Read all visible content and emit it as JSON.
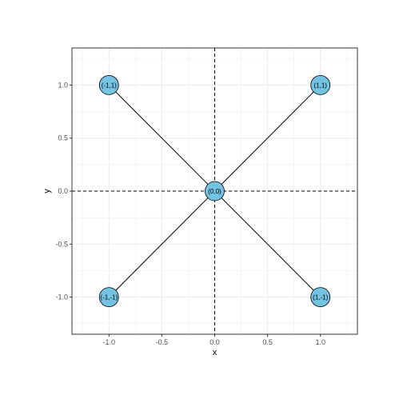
{
  "chart_data": {
    "type": "scatter",
    "xlabel": "x",
    "ylabel": "y",
    "xlim": [
      -1.35,
      1.35
    ],
    "ylim": [
      -1.35,
      1.35
    ],
    "x_ticks": [
      -1.0,
      -0.5,
      0.0,
      0.5,
      1.0
    ],
    "y_ticks": [
      -1.0,
      -0.5,
      0.0,
      0.5,
      1.0
    ],
    "x_tick_labels": [
      "-1.0",
      "-0.5",
      "0.0",
      "0.5",
      "1.0"
    ],
    "y_tick_labels": [
      "-1.0",
      "-0.5",
      "0.0",
      "0.5",
      "1.0"
    ],
    "grid": true,
    "reference_lines": {
      "x": 0,
      "y": 0,
      "style": "dashed"
    },
    "points": [
      {
        "x": -1,
        "y": 1,
        "label": "(-1,1)"
      },
      {
        "x": 1,
        "y": 1,
        "label": "(1,1)"
      },
      {
        "x": 0,
        "y": 0,
        "label": "(0,0)"
      },
      {
        "x": -1,
        "y": -1,
        "label": "(-1,-1)"
      },
      {
        "x": 1,
        "y": -1,
        "label": "(1,-1)"
      }
    ],
    "segments": [
      {
        "from": [
          -1,
          1
        ],
        "to": [
          0,
          0
        ]
      },
      {
        "from": [
          1,
          1
        ],
        "to": [
          0,
          0
        ]
      },
      {
        "from": [
          -1,
          -1
        ],
        "to": [
          0,
          0
        ]
      },
      {
        "from": [
          1,
          -1
        ],
        "to": [
          0,
          0
        ]
      }
    ],
    "colors": {
      "point_fill": "#74c3e3",
      "point_stroke": "#000000",
      "grid": "#ebebeb",
      "panel_border": "#333333"
    }
  }
}
